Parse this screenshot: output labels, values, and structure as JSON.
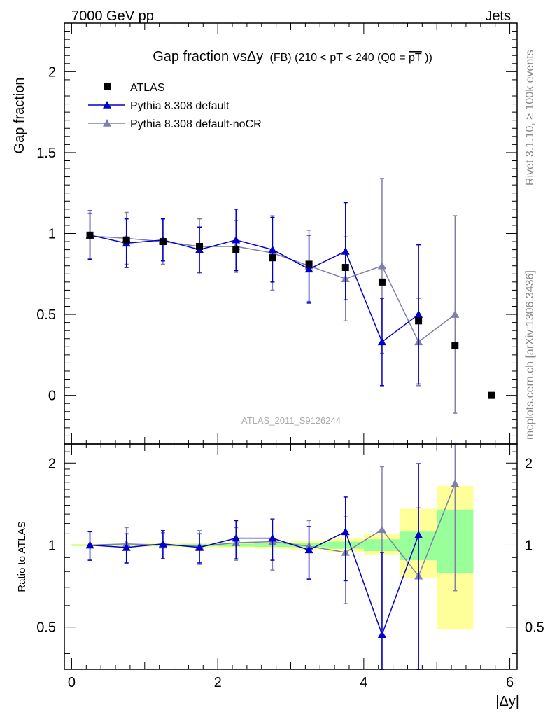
{
  "header": {
    "left": "7000 GeV pp",
    "right": "Jets"
  },
  "side_labels": {
    "rivet": "Rivet 3.1.10, ≥ 100k events",
    "mcplots": "mcplots.cern.ch [arXiv:1306.3436]"
  },
  "chart_data": {
    "type": "scatter",
    "title": {
      "main": "Gap fraction vsΔy",
      "sub": "(FB) (210 < pT < 240 (Q0 =",
      "overline": "pT",
      "close": "))"
    },
    "analysis_label": "ATLAS_2011_S9126244",
    "xlabel": "|Δy|",
    "ylabel_main": "Gap fraction",
    "ylabel_ratio": "Ratio to ATLAS",
    "xlim": [
      -0.1,
      6.1
    ],
    "ylim_main": [
      -0.3,
      2.3
    ],
    "ylim_ratio": [
      0.35,
      2.35
    ],
    "xticks": [
      0,
      2,
      4,
      6
    ],
    "yticks_main": [
      0,
      0.5,
      1,
      1.5,
      2
    ],
    "yticks_ratio": [
      0.5,
      1,
      2
    ],
    "x": [
      0.25,
      0.75,
      1.25,
      1.75,
      2.25,
      2.75,
      3.25,
      3.75,
      4.25,
      4.75,
      5.25,
      5.75
    ],
    "series": [
      {
        "name": "ATLAS",
        "color": "#000000",
        "marker": "square",
        "values": [
          0.99,
          0.96,
          0.95,
          0.92,
          0.9,
          0.85,
          0.81,
          0.79,
          0.7,
          0.46,
          0.31,
          0.0
        ]
      },
      {
        "name": "Pythia 8.308 default",
        "color": "#0000cc",
        "marker": "triangle",
        "values": [
          0.99,
          0.94,
          0.96,
          0.9,
          0.96,
          0.9,
          0.78,
          0.89,
          0.33,
          0.5,
          null,
          null
        ],
        "err": [
          0.15,
          0.15,
          0.13,
          0.14,
          0.19,
          0.2,
          0.21,
          0.3,
          0.27,
          0.43,
          null,
          null
        ],
        "ratio": [
          1.0,
          0.98,
          1.01,
          0.98,
          1.06,
          1.06,
          0.96,
          1.12,
          0.47,
          1.09,
          null,
          null
        ],
        "ratio_err": [
          0.12,
          0.12,
          0.12,
          0.12,
          0.17,
          0.18,
          0.21,
          0.38,
          0.47,
          0.9,
          null,
          null
        ]
      },
      {
        "name": "Pythia 8.308 default-noCR",
        "color": "#7f7faa",
        "marker": "triangle",
        "values": [
          0.985,
          0.97,
          0.95,
          0.92,
          0.92,
          0.88,
          0.8,
          0.72,
          0.8,
          0.33,
          0.5,
          null
        ],
        "err": [
          0.14,
          0.16,
          0.14,
          0.17,
          0.16,
          0.23,
          0.22,
          0.26,
          0.54,
          0.27,
          0.61,
          null
        ],
        "ratio": [
          1.0,
          1.01,
          1.0,
          0.99,
          1.02,
          1.03,
          0.99,
          0.94,
          1.14,
          0.77,
          1.68,
          null
        ],
        "ratio_err": [
          0.12,
          0.15,
          0.11,
          0.14,
          0.14,
          0.22,
          0.24,
          0.33,
          0.8,
          0.6,
          1.0,
          null
        ]
      }
    ],
    "ratio_bands": {
      "green_color": "#99ff99",
      "yellow_color": "#ffff99",
      "edges": [
        0,
        0.5,
        1,
        1.5,
        2,
        2.5,
        3,
        3.5,
        4,
        4.5,
        5,
        5.5
      ],
      "green": [
        [
          0.995,
          1.005
        ],
        [
          0.995,
          1.005
        ],
        [
          0.993,
          1.007
        ],
        [
          0.99,
          1.01
        ],
        [
          0.988,
          1.012
        ],
        [
          0.985,
          1.015
        ],
        [
          0.982,
          1.018
        ],
        [
          0.97,
          1.03
        ],
        [
          0.95,
          1.05
        ],
        [
          0.88,
          1.12
        ],
        [
          0.79,
          1.35
        ]
      ],
      "yellow": [
        [
          0.99,
          1.01
        ],
        [
          0.99,
          1.01
        ],
        [
          0.985,
          1.015
        ],
        [
          0.98,
          1.02
        ],
        [
          0.975,
          1.025
        ],
        [
          0.97,
          1.03
        ],
        [
          0.96,
          1.04
        ],
        [
          0.94,
          1.06
        ],
        [
          0.92,
          1.1
        ],
        [
          0.76,
          1.36
        ],
        [
          0.49,
          1.65
        ]
      ]
    }
  }
}
